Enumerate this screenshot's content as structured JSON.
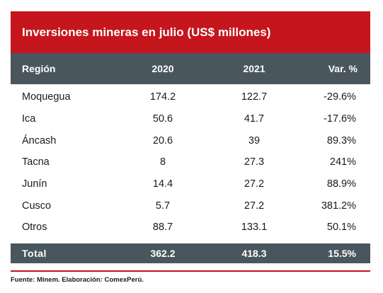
{
  "chart_data": {
    "type": "table",
    "title": "Inversiones mineras en julio (US$ millones)",
    "columns": [
      "Región",
      "2020",
      "2021",
      "Var. %"
    ],
    "rows": [
      {
        "region": "Moquegua",
        "y2020": "174.2",
        "y2021": "122.7",
        "var": "-29.6%"
      },
      {
        "region": "Ica",
        "y2020": "50.6",
        "y2021": "41.7",
        "var": "-17.6%"
      },
      {
        "region": "Áncash",
        "y2020": "20.6",
        "y2021": "39",
        "var": "89.3%"
      },
      {
        "region": "Tacna",
        "y2020": "8",
        "y2021": "27.3",
        "var": "241%"
      },
      {
        "region": "Junín",
        "y2020": "14.4",
        "y2021": "27.2",
        "var": "88.9%"
      },
      {
        "region": "Cusco",
        "y2020": "5.7",
        "y2021": "27.2",
        "var": "381.2%"
      },
      {
        "region": "Otros",
        "y2020": "88.7",
        "y2021": "133.1",
        "var": "50.1%"
      }
    ],
    "total": {
      "region": "Total",
      "y2020": "362.2",
      "y2021": "418.3",
      "var": "15.5%"
    },
    "source": "Fuente: Minem. Elaboración: ComexPerú."
  },
  "colors": {
    "title_bg": "#c4161c",
    "header_bg": "#4a565e",
    "rule": "#c4161c"
  }
}
